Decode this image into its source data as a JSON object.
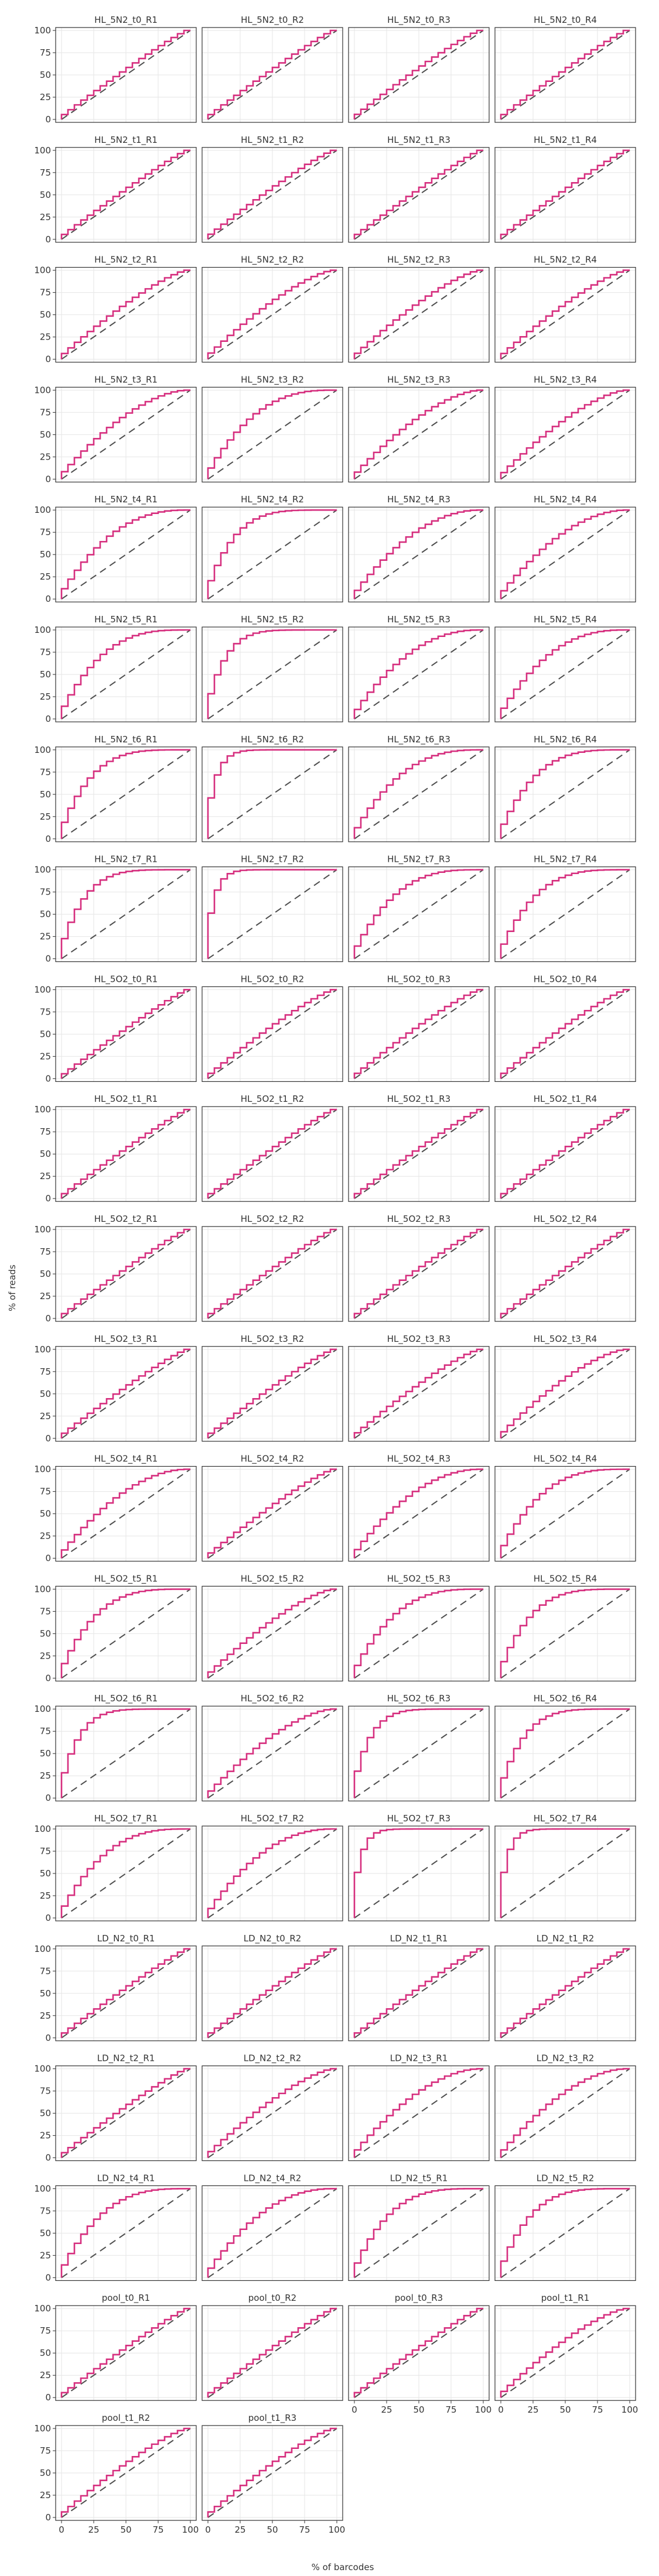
{
  "chart_data": {
    "type": "step",
    "xlabel": "% of barcodes",
    "ylabel": "% of reads",
    "xlim": [
      0,
      100
    ],
    "ylim": [
      0,
      100
    ],
    "x_ticks": [
      "0",
      "25",
      "50",
      "75",
      "100"
    ],
    "y_ticks": [
      "0",
      "25",
      "50",
      "75",
      "100"
    ],
    "grid": true,
    "diagonal_reference": true,
    "colors": {
      "curve": "#d62e7e",
      "diagonal": "#4d4d4d",
      "grid": "#e6e6e6",
      "frame": "#333333"
    },
    "panels": [
      {
        "title": "HL_5N2_t0_R1",
        "skew": 1.1
      },
      {
        "title": "HL_5N2_t0_R2",
        "skew": 1.1
      },
      {
        "title": "HL_5N2_t0_R3",
        "skew": 1.15
      },
      {
        "title": "HL_5N2_t0_R4",
        "skew": 1.1
      },
      {
        "title": "HL_5N2_t1_R1",
        "skew": 1.1
      },
      {
        "title": "HL_5N2_t1_R2",
        "skew": 1.15
      },
      {
        "title": "HL_5N2_t1_R3",
        "skew": 1.1
      },
      {
        "title": "HL_5N2_t1_R4",
        "skew": 1.1
      },
      {
        "title": "HL_5N2_t2_R1",
        "skew": 1.3
      },
      {
        "title": "HL_5N2_t2_R2",
        "skew": 1.4
      },
      {
        "title": "HL_5N2_t2_R3",
        "skew": 1.35
      },
      {
        "title": "HL_5N2_t2_R4",
        "skew": 1.3
      },
      {
        "title": "HL_5N2_t3_R1",
        "skew": 1.7
      },
      {
        "title": "HL_5N2_t3_R2",
        "skew": 2.6
      },
      {
        "title": "HL_5N2_t3_R3",
        "skew": 1.6
      },
      {
        "title": "HL_5N2_t3_R4",
        "skew": 1.5
      },
      {
        "title": "HL_5N2_t4_R1",
        "skew": 2.4
      },
      {
        "title": "HL_5N2_t4_R2",
        "skew": 4.5
      },
      {
        "title": "HL_5N2_t4_R3",
        "skew": 2.0
      },
      {
        "title": "HL_5N2_t4_R4",
        "skew": 1.9
      },
      {
        "title": "HL_5N2_t5_R1",
        "skew": 3.0
      },
      {
        "title": "HL_5N2_t5_R2",
        "skew": 6.5
      },
      {
        "title": "HL_5N2_t5_R3",
        "skew": 2.2
      },
      {
        "title": "HL_5N2_t5_R4",
        "skew": 2.5
      },
      {
        "title": "HL_5N2_t6_R1",
        "skew": 4.0
      },
      {
        "title": "HL_5N2_t6_R2",
        "skew": 12.0
      },
      {
        "title": "HL_5N2_t6_R3",
        "skew": 2.6
      },
      {
        "title": "HL_5N2_t6_R4",
        "skew": 3.5
      },
      {
        "title": "HL_5N2_t7_R1",
        "skew": 5.0
      },
      {
        "title": "HL_5N2_t7_R2",
        "skew": 14.0
      },
      {
        "title": "HL_5N2_t7_R3",
        "skew": 3.0
      },
      {
        "title": "HL_5N2_t7_R4",
        "skew": 3.5
      },
      {
        "title": "HL_5O2_t0_R1",
        "skew": 1.1
      },
      {
        "title": "HL_5O2_t0_R2",
        "skew": 1.2
      },
      {
        "title": "HL_5O2_t0_R3",
        "skew": 1.2
      },
      {
        "title": "HL_5O2_t0_R4",
        "skew": 1.2
      },
      {
        "title": "HL_5O2_t1_R1",
        "skew": 1.1
      },
      {
        "title": "HL_5O2_t1_R2",
        "skew": 1.1
      },
      {
        "title": "HL_5O2_t1_R3",
        "skew": 1.1
      },
      {
        "title": "HL_5O2_t1_R4",
        "skew": 1.1
      },
      {
        "title": "HL_5O2_t2_R1",
        "skew": 1.1
      },
      {
        "title": "HL_5O2_t2_R2",
        "skew": 1.1
      },
      {
        "title": "HL_5O2_t2_R3",
        "skew": 1.1
      },
      {
        "title": "HL_5O2_t2_R4",
        "skew": 1.1
      },
      {
        "title": "HL_5O2_t3_R1",
        "skew": 1.15
      },
      {
        "title": "HL_5O2_t3_R2",
        "skew": 1.15
      },
      {
        "title": "HL_5O2_t3_R3",
        "skew": 1.25
      },
      {
        "title": "HL_5O2_t3_R4",
        "skew": 1.5
      },
      {
        "title": "HL_5O2_t4_R1",
        "skew": 1.9
      },
      {
        "title": "HL_5O2_t4_R2",
        "skew": 1.2
      },
      {
        "title": "HL_5O2_t4_R3",
        "skew": 2.0
      },
      {
        "title": "HL_5O2_t4_R4",
        "skew": 3.0
      },
      {
        "title": "HL_5O2_t5_R1",
        "skew": 3.5
      },
      {
        "title": "HL_5O2_t5_R2",
        "skew": 1.4
      },
      {
        "title": "HL_5O2_t5_R3",
        "skew": 3.0
      },
      {
        "title": "HL_5O2_t5_R4",
        "skew": 4.0
      },
      {
        "title": "HL_5O2_t6_R1",
        "skew": 6.5
      },
      {
        "title": "HL_5O2_t6_R2",
        "skew": 1.6
      },
      {
        "title": "HL_5O2_t6_R3",
        "skew": 7.0
      },
      {
        "title": "HL_5O2_t6_R4",
        "skew": 5.0
      },
      {
        "title": "HL_5O2_t7_R1",
        "skew": 2.8
      },
      {
        "title": "HL_5O2_t7_R2",
        "skew": 2.2
      },
      {
        "title": "HL_5O2_t7_R3",
        "skew": 14.0
      },
      {
        "title": "HL_5O2_t7_R4",
        "skew": 14.0
      },
      {
        "title": "LD_N2_t0_R1",
        "skew": 1.1
      },
      {
        "title": "LD_N2_t0_R2",
        "skew": 1.1
      },
      {
        "title": "LD_N2_t1_R1",
        "skew": 1.1
      },
      {
        "title": "LD_N2_t1_R2",
        "skew": 1.1
      },
      {
        "title": "LD_N2_t2_R1",
        "skew": 1.15
      },
      {
        "title": "LD_N2_t2_R2",
        "skew": 1.4
      },
      {
        "title": "LD_N2_t3_R1",
        "skew": 1.8
      },
      {
        "title": "LD_N2_t3_R2",
        "skew": 1.8
      },
      {
        "title": "LD_N2_t4_R1",
        "skew": 3.0
      },
      {
        "title": "LD_N2_t4_R2",
        "skew": 2.2
      },
      {
        "title": "LD_N2_t5_R1",
        "skew": 3.5
      },
      {
        "title": "LD_N2_t5_R2",
        "skew": 4.0
      },
      {
        "title": "pool_t0_R1",
        "skew": 1.1
      },
      {
        "title": "pool_t0_R2",
        "skew": 1.1
      },
      {
        "title": "pool_t0_R3",
        "skew": 1.1
      },
      {
        "title": "pool_t1_R1",
        "skew": 1.4
      },
      {
        "title": "pool_t1_R2",
        "skew": 1.25
      },
      {
        "title": "pool_t1_R3",
        "skew": 1.25
      }
    ]
  }
}
